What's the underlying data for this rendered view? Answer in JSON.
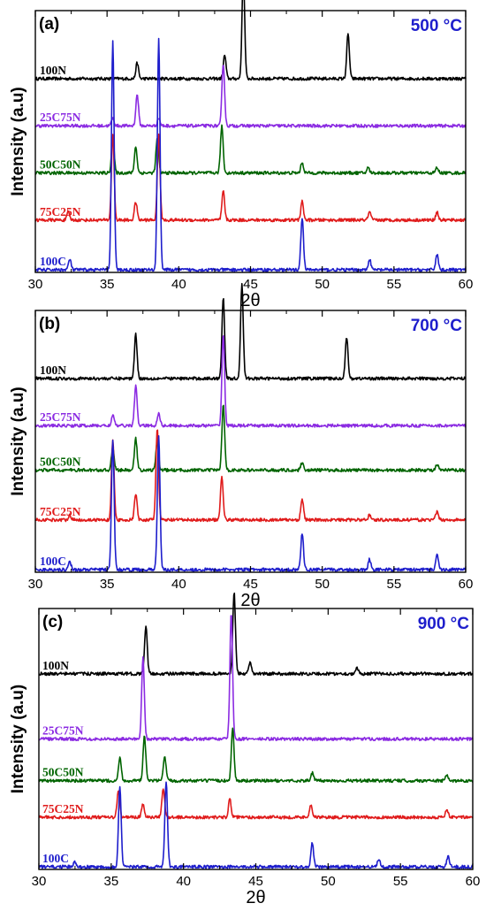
{
  "chart_data": [
    {
      "type": "line",
      "panel_label": "(a)",
      "temperature": "500 °C",
      "xlabel": "2θ",
      "ylabel": "Intensity (a.u)",
      "xlim": [
        30,
        60
      ],
      "xticks": [
        "30",
        "35",
        "40",
        "45",
        "50",
        "55",
        "60"
      ],
      "series": [
        {
          "name": "100N",
          "color": "#000000",
          "offset": 0.74,
          "peaks": [
            [
              37.1,
              0.06
            ],
            [
              43.2,
              0.09
            ],
            [
              44.5,
              0.4
            ],
            [
              51.8,
              0.17
            ]
          ]
        },
        {
          "name": "25C75N",
          "color": "#8b2be2",
          "offset": 0.56,
          "peaks": [
            [
              35.4,
              0.03
            ],
            [
              37.1,
              0.12
            ],
            [
              38.6,
              0.03
            ],
            [
              43.1,
              0.24
            ]
          ]
        },
        {
          "name": "50C50N",
          "color": "#006400",
          "offset": 0.38,
          "peaks": [
            [
              35.4,
              0.14
            ],
            [
              37.0,
              0.1
            ],
            [
              38.5,
              0.13
            ],
            [
              43.0,
              0.18
            ],
            [
              48.6,
              0.04
            ],
            [
              53.2,
              0.02
            ],
            [
              58.0,
              0.02
            ]
          ]
        },
        {
          "name": "75C25N",
          "color": "#e01b1b",
          "offset": 0.2,
          "peaks": [
            [
              32.3,
              0.03
            ],
            [
              35.4,
              0.33
            ],
            [
              37.0,
              0.07
            ],
            [
              38.6,
              0.33
            ],
            [
              43.1,
              0.11
            ],
            [
              48.6,
              0.07
            ],
            [
              53.3,
              0.03
            ],
            [
              58.0,
              0.03
            ]
          ]
        },
        {
          "name": "100C",
          "color": "#1e1ecc",
          "offset": 0.01,
          "peaks": [
            [
              32.4,
              0.04
            ],
            [
              35.4,
              0.87
            ],
            [
              38.6,
              0.88
            ],
            [
              48.6,
              0.2
            ],
            [
              53.3,
              0.04
            ],
            [
              58.0,
              0.06
            ]
          ]
        }
      ]
    },
    {
      "type": "line",
      "panel_label": "(b)",
      "temperature": "700 °C",
      "xlabel": "2θ",
      "ylabel": "Intensity (a.u)",
      "xlim": [
        30,
        60
      ],
      "xticks": [
        "30",
        "35",
        "40",
        "45",
        "50",
        "55",
        "60"
      ],
      "series": [
        {
          "name": "100N",
          "color": "#000000",
          "offset": 0.74,
          "peaks": [
            [
              37.0,
              0.17
            ],
            [
              43.1,
              0.31
            ],
            [
              44.4,
              0.36
            ],
            [
              51.7,
              0.16
            ]
          ]
        },
        {
          "name": "25C75N",
          "color": "#8b2be2",
          "offset": 0.56,
          "peaks": [
            [
              35.4,
              0.04
            ],
            [
              37.0,
              0.15
            ],
            [
              38.6,
              0.05
            ],
            [
              43.1,
              0.35
            ]
          ]
        },
        {
          "name": "50C50N",
          "color": "#006400",
          "offset": 0.39,
          "peaks": [
            [
              35.4,
              0.09
            ],
            [
              37.0,
              0.12
            ],
            [
              38.5,
              0.11
            ],
            [
              43.1,
              0.25
            ],
            [
              48.6,
              0.03
            ],
            [
              58.0,
              0.02
            ]
          ]
        },
        {
          "name": "75C25N",
          "color": "#e01b1b",
          "offset": 0.2,
          "peaks": [
            [
              32.4,
              0.02
            ],
            [
              35.4,
              0.3
            ],
            [
              37.0,
              0.1
            ],
            [
              38.5,
              0.35
            ],
            [
              43.0,
              0.17
            ],
            [
              48.6,
              0.08
            ],
            [
              53.3,
              0.02
            ],
            [
              58.0,
              0.03
            ]
          ]
        },
        {
          "name": "100C",
          "color": "#1e1ecc",
          "offset": 0.01,
          "peaks": [
            [
              32.4,
              0.03
            ],
            [
              35.4,
              0.49
            ],
            [
              38.6,
              0.51
            ],
            [
              48.6,
              0.14
            ],
            [
              53.3,
              0.04
            ],
            [
              58.0,
              0.06
            ]
          ]
        }
      ]
    },
    {
      "type": "line",
      "panel_label": "(c)",
      "temperature": "900 °C",
      "xlabel": "2θ",
      "ylabel": "Intensity (a.u)",
      "xlim": [
        30,
        60
      ],
      "xticks": [
        "30",
        "35",
        "40",
        "45",
        "50",
        "55",
        "60"
      ],
      "series": [
        {
          "name": "100N",
          "color": "#000000",
          "offset": 0.75,
          "peaks": [
            [
              37.4,
              0.18
            ],
            [
              43.5,
              0.31
            ],
            [
              44.6,
              0.04
            ],
            [
              52.0,
              0.02
            ]
          ]
        },
        {
          "name": "25C75N",
          "color": "#8b2be2",
          "offset": 0.5,
          "peaks": [
            [
              37.2,
              0.31
            ],
            [
              43.3,
              0.48
            ]
          ]
        },
        {
          "name": "50C50N",
          "color": "#006400",
          "offset": 0.34,
          "peaks": [
            [
              35.6,
              0.09
            ],
            [
              37.3,
              0.17
            ],
            [
              38.7,
              0.09
            ],
            [
              43.4,
              0.2
            ],
            [
              48.9,
              0.03
            ],
            [
              58.2,
              0.02
            ]
          ]
        },
        {
          "name": "75C25N",
          "color": "#e01b1b",
          "offset": 0.2,
          "peaks": [
            [
              35.5,
              0.1
            ],
            [
              37.2,
              0.05
            ],
            [
              38.6,
              0.11
            ],
            [
              43.2,
              0.07
            ],
            [
              48.8,
              0.05
            ],
            [
              58.2,
              0.03
            ]
          ]
        },
        {
          "name": "100C",
          "color": "#1e1ecc",
          "offset": 0.01,
          "peaks": [
            [
              32.5,
              0.02
            ],
            [
              35.6,
              0.31
            ],
            [
              38.8,
              0.33
            ],
            [
              48.9,
              0.09
            ],
            [
              53.5,
              0.03
            ],
            [
              58.3,
              0.04
            ]
          ]
        }
      ]
    }
  ]
}
